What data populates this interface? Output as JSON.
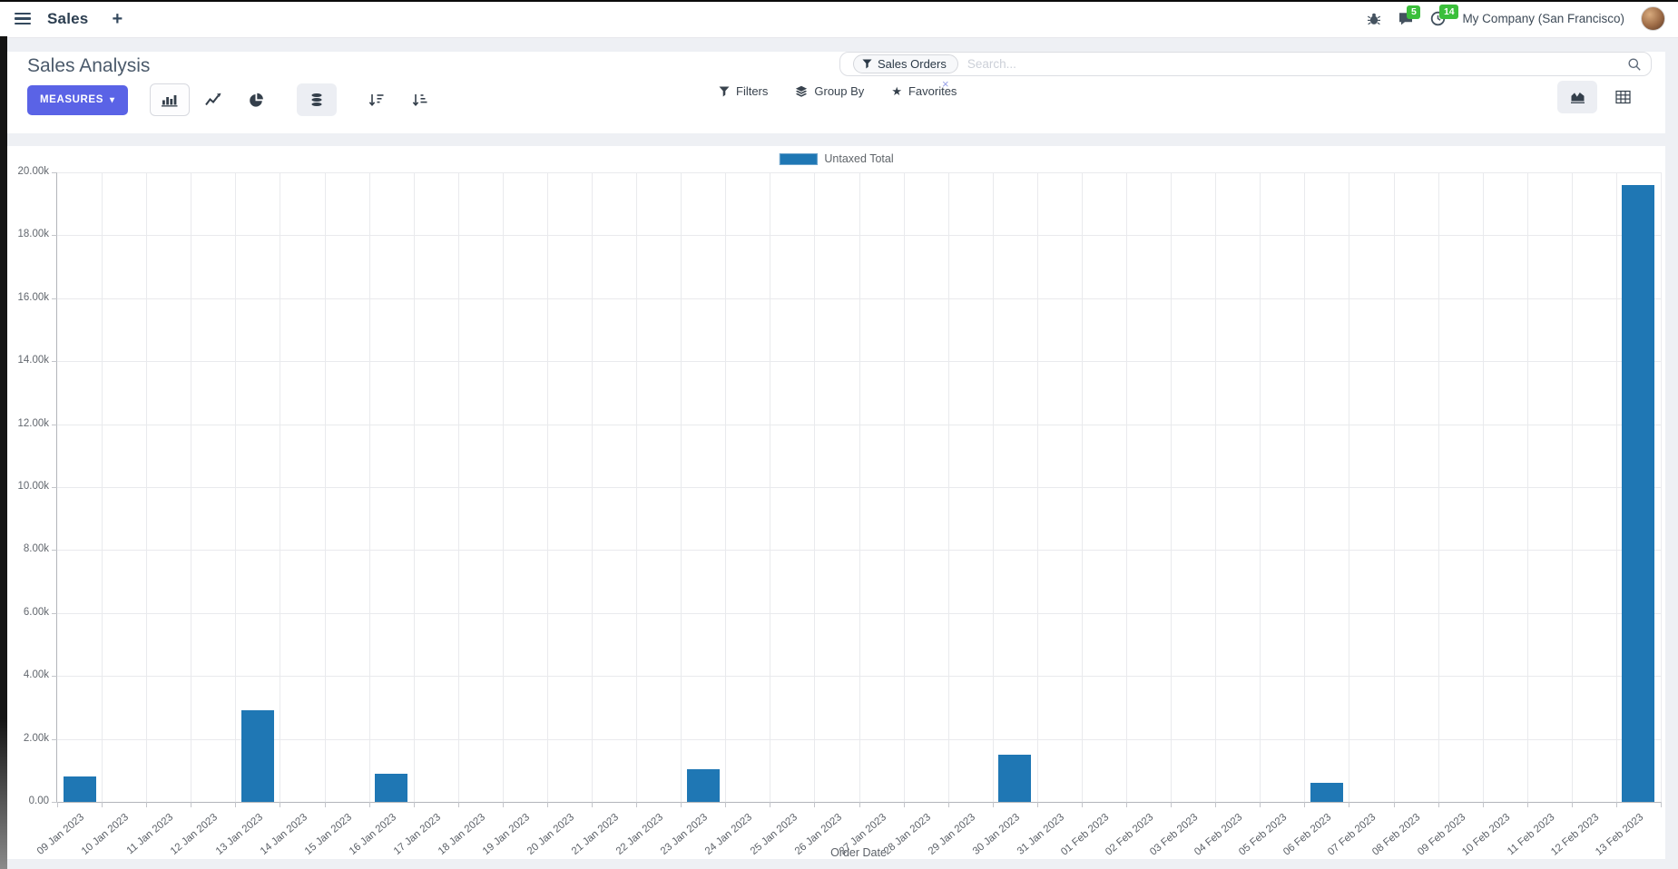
{
  "topbar": {
    "app_name": "Sales",
    "plus": "+",
    "messages_badge": "5",
    "activities_badge": "14",
    "company": "My Company (San Francisco)"
  },
  "control_panel": {
    "title": "Sales Analysis",
    "measures_label": "MEASURES",
    "caret": "▾",
    "search": {
      "facet_label": "Sales Orders",
      "remove": "×",
      "placeholder": "Search..."
    },
    "filters_label": "Filters",
    "group_by_label": "Group By",
    "favorites_label": "Favorites",
    "star": "★"
  },
  "chart_data": {
    "type": "bar",
    "title": "",
    "legend_position": "top",
    "grid": true,
    "xlabel": "Order Date",
    "categories": [
      "09 Jan 2023",
      "10 Jan 2023",
      "11 Jan 2023",
      "12 Jan 2023",
      "13 Jan 2023",
      "14 Jan 2023",
      "15 Jan 2023",
      "16 Jan 2023",
      "17 Jan 2023",
      "18 Jan 2023",
      "19 Jan 2023",
      "20 Jan 2023",
      "21 Jan 2023",
      "22 Jan 2023",
      "23 Jan 2023",
      "24 Jan 2023",
      "25 Jan 2023",
      "26 Jan 2023",
      "27 Jan 2023",
      "28 Jan 2023",
      "29 Jan 2023",
      "30 Jan 2023",
      "31 Jan 2023",
      "01 Feb 2023",
      "02 Feb 2023",
      "03 Feb 2023",
      "04 Feb 2023",
      "05 Feb 2023",
      "06 Feb 2023",
      "07 Feb 2023",
      "08 Feb 2023",
      "09 Feb 2023",
      "10 Feb 2023",
      "11 Feb 2023",
      "12 Feb 2023",
      "13 Feb 2023"
    ],
    "series": [
      {
        "name": "Untaxed Total",
        "color": "#1f77b4",
        "values": [
          800,
          0,
          0,
          0,
          2900,
          0,
          0,
          900,
          0,
          0,
          0,
          0,
          0,
          0,
          1050,
          0,
          0,
          0,
          0,
          0,
          0,
          1500,
          0,
          0,
          0,
          0,
          0,
          0,
          600,
          0,
          0,
          0,
          0,
          0,
          0,
          19600
        ]
      }
    ],
    "ylim": [
      0,
      20000
    ],
    "ytick_step": 2000,
    "ytick_labels": [
      "0.00",
      "2.00k",
      "4.00k",
      "6.00k",
      "8.00k",
      "10.00k",
      "12.00k",
      "14.00k",
      "16.00k",
      "18.00k",
      "20.00k"
    ]
  },
  "colors": {
    "accent": "#5a63e6",
    "bar_blue": "#1f77b4",
    "badge_green": "#3bbf3b",
    "topbar_text": "#2c3e50",
    "page_background": "#eef0f4"
  }
}
